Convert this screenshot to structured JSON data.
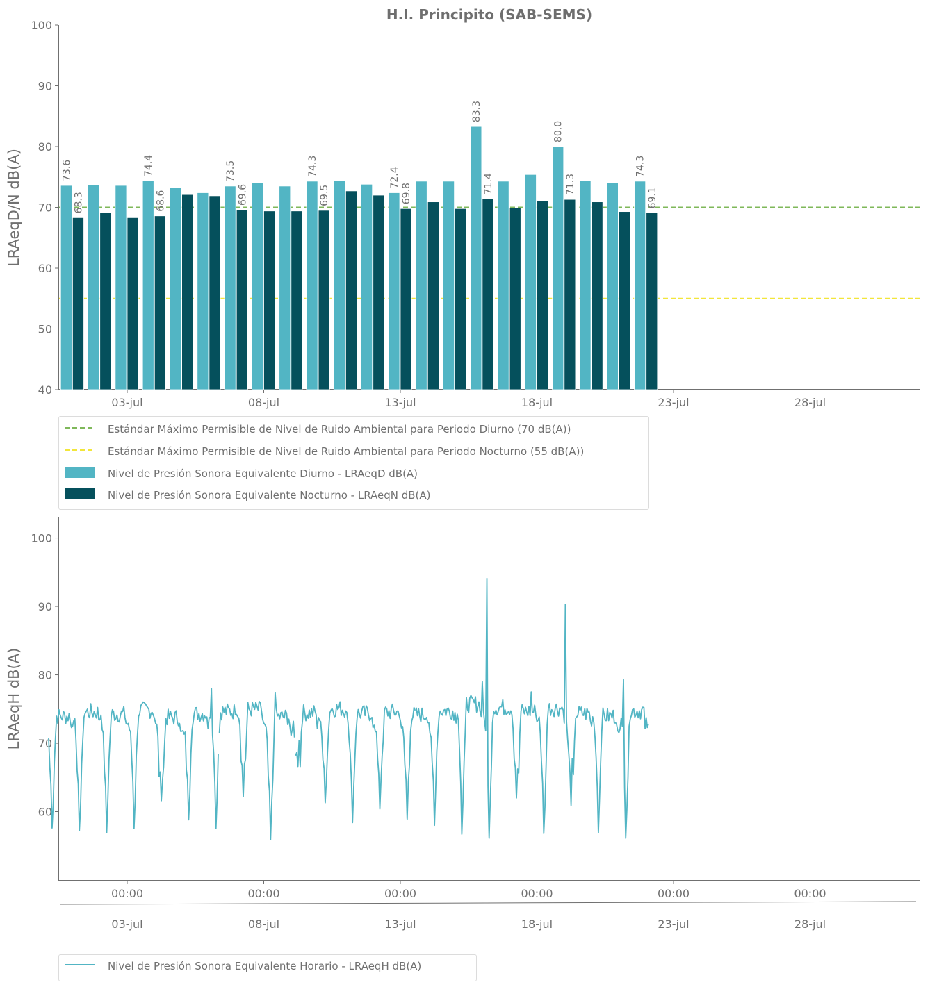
{
  "colors": {
    "day": "#52b5c4",
    "night": "#05505c",
    "std_day": "#7fb85a",
    "std_night": "#f2e63a",
    "axis": "#707070"
  },
  "title": "H.I. Principito (SAB-SEMS)",
  "chart_data": [
    {
      "type": "bar",
      "title": "H.I. Principito (SAB-SEMS)",
      "ylabel": "LRAeqD/N dB(A)",
      "ylim": [
        40,
        100
      ],
      "yticks": [
        "40",
        "50",
        "60",
        "70",
        "80",
        "90",
        "100"
      ],
      "xtick_labels": [
        "03-jul",
        "08-jul",
        "13-jul",
        "18-jul",
        "23-jul",
        "28-jul"
      ],
      "xtick_days": [
        3,
        8,
        13,
        18,
        23,
        28
      ],
      "x_range_days": [
        0.5,
        32
      ],
      "categories": [
        "01-jul",
        "02-jul",
        "03-jul",
        "04-jul",
        "05-jul",
        "06-jul",
        "07-jul",
        "08-jul",
        "09-jul",
        "10-jul",
        "11-jul",
        "12-jul",
        "13-jul",
        "14-jul",
        "15-jul",
        "16-jul",
        "17-jul",
        "18-jul",
        "19-jul",
        "20-jul",
        "21-jul",
        "22-jul"
      ],
      "series": [
        {
          "name": "Nivel de Presión Sonora Equivalente Diurno - LRAeqD dB(A)",
          "values": [
            73.6,
            73.7,
            73.6,
            74.4,
            73.2,
            72.4,
            73.5,
            74.1,
            73.5,
            74.3,
            74.4,
            73.8,
            72.4,
            74.3,
            74.3,
            83.3,
            74.3,
            75.4,
            80.0,
            74.4,
            74.1,
            74.3
          ]
        },
        {
          "name": "Nivel de Presión Sonora Equivalente Nocturno - LRAeqN dB(A)",
          "values": [
            68.3,
            69.1,
            68.3,
            68.6,
            72.1,
            71.9,
            69.6,
            69.4,
            69.4,
            69.5,
            72.7,
            72.0,
            69.8,
            70.9,
            69.8,
            71.4,
            69.9,
            71.1,
            71.3,
            70.9,
            69.3,
            69.1
          ]
        }
      ],
      "labeled_day": [
        "73.6",
        "",
        "",
        "74.4",
        "",
        "",
        "73.5",
        "",
        "",
        "74.3",
        "",
        "",
        "72.4",
        "",
        "",
        "83.3",
        "",
        "",
        "80.0",
        "",
        "",
        "74.3"
      ],
      "labeled_night": [
        "68.3",
        "",
        "",
        "68.6",
        "",
        "",
        "69.6",
        "",
        "",
        "69.5",
        "",
        "",
        "69.8",
        "",
        "",
        "71.4",
        "",
        "",
        "71.3",
        "",
        "",
        "69.1"
      ],
      "reference_lines": [
        {
          "name": "Estándar Máximo Permisible de Nivel de Ruido Ambiental para Periodo Diurno (70 dB(A))",
          "value": 70
        },
        {
          "name": "Estándar Máximo Permisible de Nivel de Ruido Ambiental para Periodo Nocturno (55 dB(A))",
          "value": 55
        }
      ],
      "legend_placement": "below"
    },
    {
      "type": "line",
      "ylabel": "LRAeqH dB(A)",
      "ylim": [
        50,
        103
      ],
      "yticks": [
        "60",
        "70",
        "80",
        "90",
        "100"
      ],
      "xtick_labels_top": [
        "00:00",
        "00:00",
        "00:00",
        "00:00",
        "00:00",
        "00:00"
      ],
      "xtick_labels_bottom": [
        "03-jul",
        "08-jul",
        "13-jul",
        "18-jul",
        "23-jul",
        "28-jul"
      ],
      "series": [
        {
          "name": "Nivel de Presión Sonora Equivalente Horario - LRAeqH dB(A)",
          "daily_pattern": "hourly values ~73-76 dB(A) daytime, dipping to ~56-63 dB(A) near 03:00 each night",
          "night_minima": [
            57.6,
            57.2,
            56.9,
            57.5,
            61.6,
            58.8,
            57.5,
            62.2,
            55.9,
            66.6,
            61.3,
            58.4,
            60.4,
            58.9,
            58.0,
            56.7,
            56.1,
            62.0,
            56.8,
            60.9,
            56.9,
            56.1
          ],
          "day_levels": [
            74.2,
            74.8,
            74.5,
            75.1,
            74.0,
            74.6,
            74.9,
            75.2,
            74.1,
            74.7,
            75.3,
            74.6,
            74.8,
            74.4,
            75.0,
            76.0,
            75.5,
            74.9,
            75.4,
            74.6,
            74.2,
            75.0
          ],
          "spikes": [
            {
              "day": 16.15,
              "value": 94.1
            },
            {
              "day": 19.05,
              "value": 90.3
            },
            {
              "day": 6.1,
              "value": 78.0
            },
            {
              "day": 8.4,
              "value": 77.4
            },
            {
              "day": 16.0,
              "value": 79.0
            },
            {
              "day": 21.15,
              "value": 79.3
            },
            {
              "day": 17.8,
              "value": 77.5
            }
          ]
        }
      ],
      "legend_placement": "below"
    }
  ]
}
